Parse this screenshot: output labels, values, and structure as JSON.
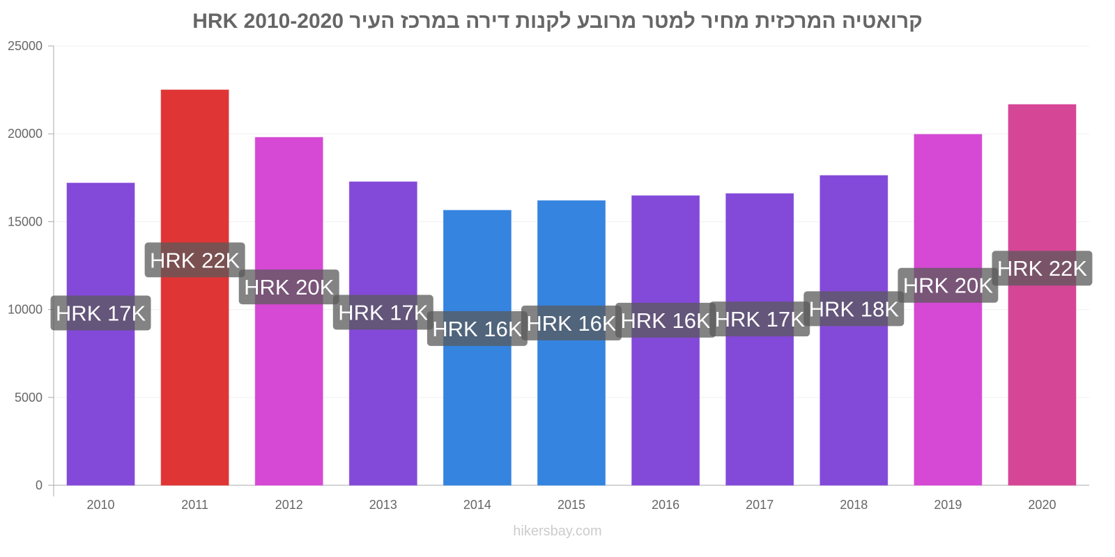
{
  "chart_data": {
    "type": "bar",
    "title": "קרואטיה המרכזית מחיר למטר מרובע לקנות דירה במרכז העיר 2010-2020 HRK",
    "categories": [
      "2010",
      "2011",
      "2012",
      "2013",
      "2014",
      "2015",
      "2016",
      "2017",
      "2018",
      "2019",
      "2020"
    ],
    "values": [
      17200,
      22500,
      19800,
      17270,
      15650,
      16200,
      16480,
      16600,
      17630,
      19970,
      21670
    ],
    "data_labels": [
      "HRK 17K",
      "HRK 22K",
      "HRK 20K",
      "HRK 17K",
      "HRK 16K",
      "HRK 16K",
      "HRK 16K",
      "HRK 17K",
      "HRK 18K",
      "HRK 20K",
      "HRK 22K"
    ],
    "colors": [
      "#8349d9",
      "#e03535",
      "#d549d4",
      "#8349d9",
      "#3584e0",
      "#3584e0",
      "#8349d9",
      "#8349d9",
      "#8349d9",
      "#d549d4",
      "#d64696"
    ],
    "yticks": [
      "0",
      "5000",
      "10000",
      "15000",
      "20000",
      "25000"
    ],
    "ylim": [
      0,
      25000
    ],
    "xlabel": "",
    "ylabel": "",
    "grid": true
  },
  "watermark": "hikersbay.com"
}
